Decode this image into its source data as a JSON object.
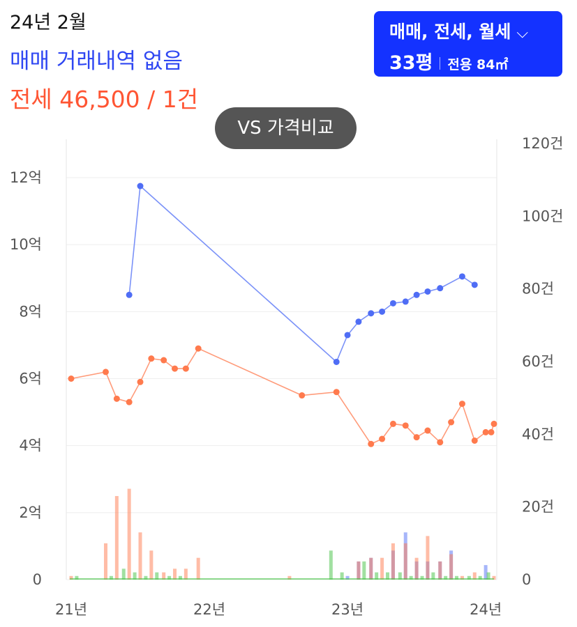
{
  "header": {
    "date": "24년 2월",
    "sale_status": "매매 거래내역 없음",
    "lease_summary": "전세 46,500 / 1건"
  },
  "filter": {
    "types": "매매, 전세, 월세",
    "chevron_icon": "chevron-down-icon",
    "size_pyeong": "33평",
    "area": "전용 84㎡"
  },
  "compare_button": "VS 가격비교",
  "colors": {
    "sale": "#4f6df5",
    "lease": "#ff7a4d",
    "monthly": "#44c244",
    "accent": "#1432ff"
  },
  "chart_data": {
    "type": "line",
    "x_ticks": [
      "21년",
      "22년",
      "23년",
      "24년"
    ],
    "x_tick_years": [
      2021,
      2022,
      2023,
      2024
    ],
    "xlim": [
      2021,
      2024.06
    ],
    "y_left": {
      "ticks": [
        "0",
        "2억",
        "4억",
        "6억",
        "8억",
        "10억",
        "12억"
      ],
      "values": [
        0,
        2,
        4,
        6,
        8,
        10,
        12
      ],
      "ylim": [
        0,
        12
      ]
    },
    "y_right": {
      "ticks": [
        "0",
        "20건",
        "40건",
        "60건",
        "80건",
        "100건",
        "120건"
      ],
      "values": [
        0,
        20,
        40,
        60,
        80,
        100,
        120
      ],
      "ylim": [
        0,
        120
      ]
    },
    "grid": true,
    "series": [
      {
        "key": "sale",
        "type": "line",
        "points": [
          [
            2021.42,
            8.5
          ],
          [
            2021.5,
            11.75
          ],
          [
            2022.92,
            6.5
          ],
          [
            2023.0,
            7.3
          ],
          [
            2023.08,
            7.7
          ],
          [
            2023.17,
            7.95
          ],
          [
            2023.25,
            8.0
          ],
          [
            2023.33,
            8.25
          ],
          [
            2023.42,
            8.3
          ],
          [
            2023.5,
            8.5
          ],
          [
            2023.58,
            8.6
          ],
          [
            2023.67,
            8.7
          ],
          [
            2023.83,
            9.05
          ],
          [
            2023.92,
            8.8
          ]
        ]
      },
      {
        "key": "lease",
        "type": "line",
        "points": [
          [
            2021.0,
            6.0
          ],
          [
            2021.25,
            6.2
          ],
          [
            2021.33,
            5.4
          ],
          [
            2021.42,
            5.3
          ],
          [
            2021.5,
            5.9
          ],
          [
            2021.58,
            6.6
          ],
          [
            2021.67,
            6.55
          ],
          [
            2021.75,
            6.3
          ],
          [
            2021.83,
            6.3
          ],
          [
            2021.92,
            6.9
          ],
          [
            2022.67,
            5.5
          ],
          [
            2022.92,
            5.6
          ],
          [
            2023.17,
            4.05
          ],
          [
            2023.25,
            4.2
          ],
          [
            2023.33,
            4.65
          ],
          [
            2023.42,
            4.6
          ],
          [
            2023.5,
            4.25
          ],
          [
            2023.58,
            4.45
          ],
          [
            2023.67,
            4.1
          ],
          [
            2023.75,
            4.7
          ],
          [
            2023.83,
            5.25
          ],
          [
            2023.92,
            4.15
          ],
          [
            2024.0,
            4.4
          ],
          [
            2024.04,
            4.4
          ],
          [
            2024.06,
            4.65
          ]
        ]
      },
      {
        "key": "sale_count",
        "type": "bar",
        "points": [
          [
            2023.0,
            1
          ],
          [
            2023.08,
            5
          ],
          [
            2023.17,
            6
          ],
          [
            2023.33,
            8
          ],
          [
            2023.42,
            13
          ],
          [
            2023.5,
            5
          ],
          [
            2023.58,
            5
          ],
          [
            2023.67,
            5
          ],
          [
            2023.75,
            8
          ],
          [
            2024.0,
            4
          ]
        ]
      },
      {
        "key": "lease_count",
        "type": "bar",
        "points": [
          [
            2021.0,
            1
          ],
          [
            2021.25,
            10
          ],
          [
            2021.33,
            23
          ],
          [
            2021.42,
            25
          ],
          [
            2021.5,
            13
          ],
          [
            2021.58,
            8
          ],
          [
            2021.67,
            2
          ],
          [
            2021.75,
            3
          ],
          [
            2021.83,
            3
          ],
          [
            2021.92,
            6
          ],
          [
            2022.58,
            1
          ],
          [
            2023.08,
            5
          ],
          [
            2023.17,
            6
          ],
          [
            2023.25,
            6
          ],
          [
            2023.33,
            10
          ],
          [
            2023.42,
            10
          ],
          [
            2023.5,
            6
          ],
          [
            2023.58,
            12
          ],
          [
            2023.67,
            5
          ],
          [
            2023.75,
            7
          ],
          [
            2023.83,
            1
          ],
          [
            2023.92,
            2
          ],
          [
            2024.06,
            1
          ]
        ]
      },
      {
        "key": "monthly_count",
        "type": "bar",
        "points": [
          [
            2021.04,
            1
          ],
          [
            2021.29,
            1
          ],
          [
            2021.38,
            3
          ],
          [
            2021.46,
            2
          ],
          [
            2021.54,
            1
          ],
          [
            2021.62,
            2
          ],
          [
            2021.71,
            1
          ],
          [
            2021.79,
            1
          ],
          [
            2022.88,
            8
          ],
          [
            2022.96,
            2
          ],
          [
            2023.12,
            5
          ],
          [
            2023.21,
            2
          ],
          [
            2023.29,
            2
          ],
          [
            2023.38,
            2
          ],
          [
            2023.46,
            1
          ],
          [
            2023.54,
            1
          ],
          [
            2023.62,
            2
          ],
          [
            2023.71,
            1
          ],
          [
            2023.79,
            1
          ],
          [
            2023.88,
            1
          ],
          [
            2023.96,
            1
          ],
          [
            2024.02,
            2
          ]
        ]
      }
    ]
  }
}
